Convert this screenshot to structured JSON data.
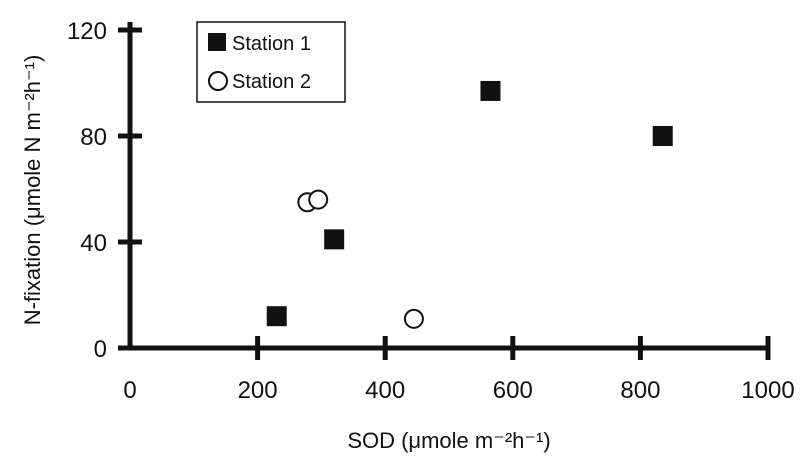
{
  "chart_data": {
    "type": "scatter",
    "title": "",
    "xlabel": "SOD (μmole m⁻²h⁻¹)",
    "ylabel": "N-fixation (μmole N m⁻²h⁻¹)",
    "xlim": [
      0,
      1000
    ],
    "ylim": [
      0,
      120
    ],
    "xticks": [
      "0",
      "200",
      "400",
      "600",
      "800",
      "1000"
    ],
    "yticks": [
      "0",
      "40",
      "80",
      "120"
    ],
    "grid": false,
    "legend_position": "top-left",
    "series": [
      {
        "name": "Station 1",
        "marker": "filled-square",
        "color": "#111111",
        "points": [
          {
            "x": 230,
            "y": 12
          },
          {
            "x": 320,
            "y": 41
          },
          {
            "x": 565,
            "y": 97
          },
          {
            "x": 835,
            "y": 80
          }
        ]
      },
      {
        "name": "Station 2",
        "marker": "open-circle",
        "color": "#111111",
        "points": [
          {
            "x": 278,
            "y": 55
          },
          {
            "x": 295,
            "y": 56
          },
          {
            "x": 445,
            "y": 11
          }
        ]
      }
    ]
  }
}
